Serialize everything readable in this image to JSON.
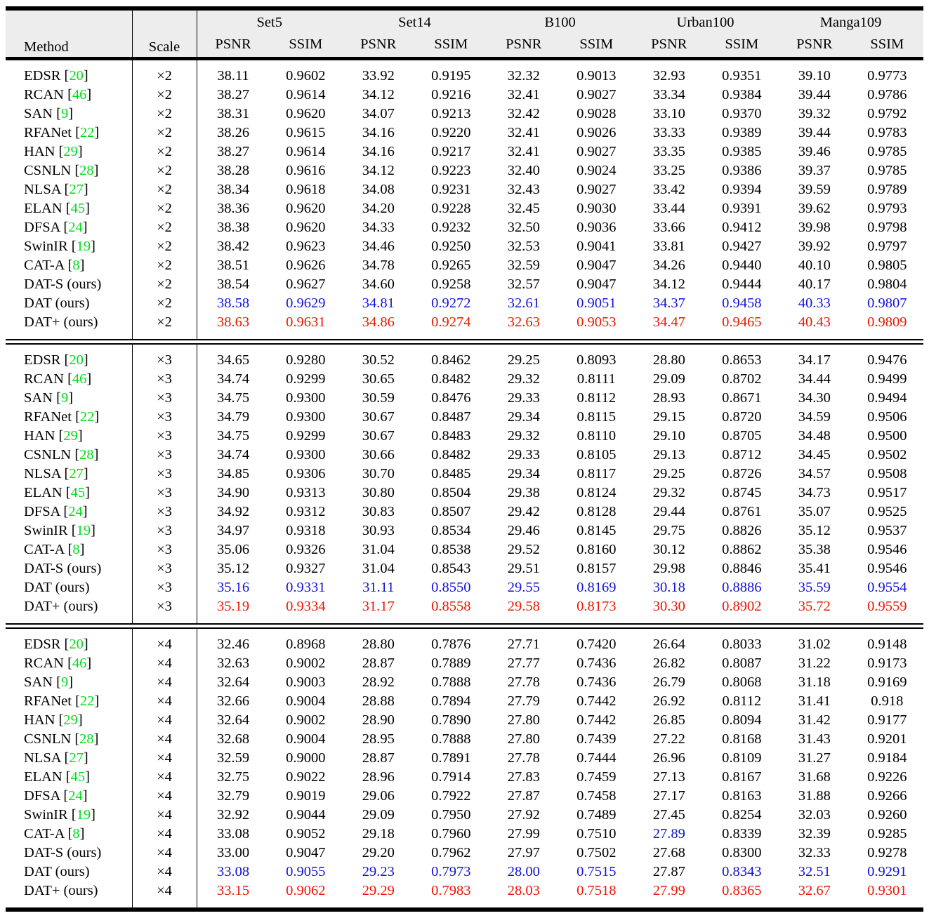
{
  "table": {
    "header": {
      "method": "Method",
      "scale": "Scale",
      "datasets": [
        "Set5",
        "Set14",
        "B100",
        "Urban100",
        "Manga109"
      ],
      "metrics": [
        "PSNR",
        "SSIM"
      ]
    },
    "colors": {
      "best": "#ee1400",
      "second": "#1111dd",
      "citation": "#00dd1c"
    },
    "blocks": [
      {
        "scale": "×2",
        "rows": [
          {
            "method": "EDSR",
            "cite": "20",
            "v": [
              "38.11",
              "0.9602",
              "33.92",
              "0.9195",
              "32.32",
              "0.9013",
              "32.93",
              "0.9351",
              "39.10",
              "0.9773"
            ]
          },
          {
            "method": "RCAN",
            "cite": "46",
            "v": [
              "38.27",
              "0.9614",
              "34.12",
              "0.9216",
              "32.41",
              "0.9027",
              "33.34",
              "0.9384",
              "39.44",
              "0.9786"
            ]
          },
          {
            "method": "SAN",
            "cite": "9",
            "v": [
              "38.31",
              "0.9620",
              "34.07",
              "0.9213",
              "32.42",
              "0.9028",
              "33.10",
              "0.9370",
              "39.32",
              "0.9792"
            ]
          },
          {
            "method": "RFANet",
            "cite": "22",
            "v": [
              "38.26",
              "0.9615",
              "34.16",
              "0.9220",
              "32.41",
              "0.9026",
              "33.33",
              "0.9389",
              "39.44",
              "0.9783"
            ]
          },
          {
            "method": "HAN",
            "cite": "29",
            "v": [
              "38.27",
              "0.9614",
              "34.16",
              "0.9217",
              "32.41",
              "0.9027",
              "33.35",
              "0.9385",
              "39.46",
              "0.9785"
            ]
          },
          {
            "method": "CSNLN",
            "cite": "28",
            "v": [
              "38.28",
              "0.9616",
              "34.12",
              "0.9223",
              "32.40",
              "0.9024",
              "33.25",
              "0.9386",
              "39.37",
              "0.9785"
            ]
          },
          {
            "method": "NLSA",
            "cite": "27",
            "v": [
              "38.34",
              "0.9618",
              "34.08",
              "0.9231",
              "32.43",
              "0.9027",
              "33.42",
              "0.9394",
              "39.59",
              "0.9789"
            ]
          },
          {
            "method": "ELAN",
            "cite": "45",
            "v": [
              "38.36",
              "0.9620",
              "34.20",
              "0.9228",
              "32.45",
              "0.9030",
              "33.44",
              "0.9391",
              "39.62",
              "0.9793"
            ]
          },
          {
            "method": "DFSA",
            "cite": "24",
            "v": [
              "38.38",
              "0.9620",
              "34.33",
              "0.9232",
              "32.50",
              "0.9036",
              "33.66",
              "0.9412",
              "39.98",
              "0.9798"
            ]
          },
          {
            "method": "SwinIR",
            "cite": "19",
            "v": [
              "38.42",
              "0.9623",
              "34.46",
              "0.9250",
              "32.53",
              "0.9041",
              "33.81",
              "0.9427",
              "39.92",
              "0.9797"
            ]
          },
          {
            "method": "CAT-A",
            "cite": "8",
            "v": [
              "38.51",
              "0.9626",
              "34.78",
              "0.9265",
              "32.59",
              "0.9047",
              "34.26",
              "0.9440",
              "40.10",
              "0.9805"
            ]
          },
          {
            "method": "DAT-S (ours)",
            "cite": null,
            "v": [
              "38.54",
              "0.9627",
              "34.60",
              "0.9258",
              "32.57",
              "0.9047",
              "34.12",
              "0.9444",
              "40.17",
              "0.9804"
            ]
          },
          {
            "method": "DAT (ours)",
            "cite": null,
            "v": [
              "38.58",
              "0.9629",
              "34.81",
              "0.9272",
              "32.61",
              "0.9051",
              "34.37",
              "0.9458",
              "40.33",
              "0.9807"
            ],
            "c": "bbbbbbbbbb"
          },
          {
            "method": "DAT+ (ours)",
            "cite": null,
            "v": [
              "38.63",
              "0.9631",
              "34.86",
              "0.9274",
              "32.63",
              "0.9053",
              "34.47",
              "0.9465",
              "40.43",
              "0.9809"
            ],
            "c": "rrrrrrrrrr"
          }
        ]
      },
      {
        "scale": "×3",
        "rows": [
          {
            "method": "EDSR",
            "cite": "20",
            "v": [
              "34.65",
              "0.9280",
              "30.52",
              "0.8462",
              "29.25",
              "0.8093",
              "28.80",
              "0.8653",
              "34.17",
              "0.9476"
            ]
          },
          {
            "method": "RCAN",
            "cite": "46",
            "v": [
              "34.74",
              "0.9299",
              "30.65",
              "0.8482",
              "29.32",
              "0.8111",
              "29.09",
              "0.8702",
              "34.44",
              "0.9499"
            ]
          },
          {
            "method": "SAN",
            "cite": "9",
            "v": [
              "34.75",
              "0.9300",
              "30.59",
              "0.8476",
              "29.33",
              "0.8112",
              "28.93",
              "0.8671",
              "34.30",
              "0.9494"
            ]
          },
          {
            "method": "RFANet",
            "cite": "22",
            "v": [
              "34.79",
              "0.9300",
              "30.67",
              "0.8487",
              "29.34",
              "0.8115",
              "29.15",
              "0.8720",
              "34.59",
              "0.9506"
            ]
          },
          {
            "method": "HAN",
            "cite": "29",
            "v": [
              "34.75",
              "0.9299",
              "30.67",
              "0.8483",
              "29.32",
              "0.8110",
              "29.10",
              "0.8705",
              "34.48",
              "0.9500"
            ]
          },
          {
            "method": "CSNLN",
            "cite": "28",
            "v": [
              "34.74",
              "0.9300",
              "30.66",
              "0.8482",
              "29.33",
              "0.8105",
              "29.13",
              "0.8712",
              "34.45",
              "0.9502"
            ]
          },
          {
            "method": "NLSA",
            "cite": "27",
            "v": [
              "34.85",
              "0.9306",
              "30.70",
              "0.8485",
              "29.34",
              "0.8117",
              "29.25",
              "0.8726",
              "34.57",
              "0.9508"
            ]
          },
          {
            "method": "ELAN",
            "cite": "45",
            "v": [
              "34.90",
              "0.9313",
              "30.80",
              "0.8504",
              "29.38",
              "0.8124",
              "29.32",
              "0.8745",
              "34.73",
              "0.9517"
            ]
          },
          {
            "method": "DFSA",
            "cite": "24",
            "v": [
              "34.92",
              "0.9312",
              "30.83",
              "0.8507",
              "29.42",
              "0.8128",
              "29.44",
              "0.8761",
              "35.07",
              "0.9525"
            ]
          },
          {
            "method": "SwinIR",
            "cite": "19",
            "v": [
              "34.97",
              "0.9318",
              "30.93",
              "0.8534",
              "29.46",
              "0.8145",
              "29.75",
              "0.8826",
              "35.12",
              "0.9537"
            ]
          },
          {
            "method": "CAT-A",
            "cite": "8",
            "v": [
              "35.06",
              "0.9326",
              "31.04",
              "0.8538",
              "29.52",
              "0.8160",
              "30.12",
              "0.8862",
              "35.38",
              "0.9546"
            ]
          },
          {
            "method": "DAT-S (ours)",
            "cite": null,
            "v": [
              "35.12",
              "0.9327",
              "31.04",
              "0.8543",
              "29.51",
              "0.8157",
              "29.98",
              "0.8846",
              "35.41",
              "0.9546"
            ]
          },
          {
            "method": "DAT (ours)",
            "cite": null,
            "v": [
              "35.16",
              "0.9331",
              "31.11",
              "0.8550",
              "29.55",
              "0.8169",
              "30.18",
              "0.8886",
              "35.59",
              "0.9554"
            ],
            "c": "bbbbbbbbbb"
          },
          {
            "method": "DAT+ (ours)",
            "cite": null,
            "v": [
              "35.19",
              "0.9334",
              "31.17",
              "0.8558",
              "29.58",
              "0.8173",
              "30.30",
              "0.8902",
              "35.72",
              "0.9559"
            ],
            "c": "rrrrrrrrrr"
          }
        ]
      },
      {
        "scale": "×4",
        "rows": [
          {
            "method": "EDSR",
            "cite": "20",
            "v": [
              "32.46",
              "0.8968",
              "28.80",
              "0.7876",
              "27.71",
              "0.7420",
              "26.64",
              "0.8033",
              "31.02",
              "0.9148"
            ]
          },
          {
            "method": "RCAN",
            "cite": "46",
            "v": [
              "32.63",
              "0.9002",
              "28.87",
              "0.7889",
              "27.77",
              "0.7436",
              "26.82",
              "0.8087",
              "31.22",
              "0.9173"
            ]
          },
          {
            "method": "SAN",
            "cite": "9",
            "v": [
              "32.64",
              "0.9003",
              "28.92",
              "0.7888",
              "27.78",
              "0.7436",
              "26.79",
              "0.8068",
              "31.18",
              "0.9169"
            ]
          },
          {
            "method": "RFANet",
            "cite": "22",
            "v": [
              "32.66",
              "0.9004",
              "28.88",
              "0.7894",
              "27.79",
              "0.7442",
              "26.92",
              "0.8112",
              "31.41",
              "0.918"
            ]
          },
          {
            "method": "HAN",
            "cite": "29",
            "v": [
              "32.64",
              "0.9002",
              "28.90",
              "0.7890",
              "27.80",
              "0.7442",
              "26.85",
              "0.8094",
              "31.42",
              "0.9177"
            ]
          },
          {
            "method": "CSNLN",
            "cite": "28",
            "v": [
              "32.68",
              "0.9004",
              "28.95",
              "0.7888",
              "27.80",
              "0.7439",
              "27.22",
              "0.8168",
              "31.43",
              "0.9201"
            ]
          },
          {
            "method": "NLSA",
            "cite": "27",
            "v": [
              "32.59",
              "0.9000",
              "28.87",
              "0.7891",
              "27.78",
              "0.7444",
              "26.96",
              "0.8109",
              "31.27",
              "0.9184"
            ]
          },
          {
            "method": "ELAN",
            "cite": "45",
            "v": [
              "32.75",
              "0.9022",
              "28.96",
              "0.7914",
              "27.83",
              "0.7459",
              "27.13",
              "0.8167",
              "31.68",
              "0.9226"
            ]
          },
          {
            "method": "DFSA",
            "cite": "24",
            "v": [
              "32.79",
              "0.9019",
              "29.06",
              "0.7922",
              "27.87",
              "0.7458",
              "27.17",
              "0.8163",
              "31.88",
              "0.9266"
            ]
          },
          {
            "method": "SwinIR",
            "cite": "19",
            "v": [
              "32.92",
              "0.9044",
              "29.09",
              "0.7950",
              "27.92",
              "0.7489",
              "27.45",
              "0.8254",
              "32.03",
              "0.9260"
            ]
          },
          {
            "method": "CAT-A",
            "cite": "8",
            "v": [
              "33.08",
              "0.9052",
              "29.18",
              "0.7960",
              "27.99",
              "0.7510",
              "27.89",
              "0.8339",
              "32.39",
              "0.9285"
            ],
            "c": "kkkkkkbkkk"
          },
          {
            "method": "DAT-S (ours)",
            "cite": null,
            "v": [
              "33.00",
              "0.9047",
              "29.20",
              "0.7962",
              "27.97",
              "0.7502",
              "27.68",
              "0.8300",
              "32.33",
              "0.9278"
            ]
          },
          {
            "method": "DAT (ours)",
            "cite": null,
            "v": [
              "33.08",
              "0.9055",
              "29.23",
              "0.7973",
              "28.00",
              "0.7515",
              "27.87",
              "0.8343",
              "32.51",
              "0.9291"
            ],
            "c": "bbbbbbkbbb"
          },
          {
            "method": "DAT+ (ours)",
            "cite": null,
            "v": [
              "33.15",
              "0.9062",
              "29.29",
              "0.7983",
              "28.03",
              "0.7518",
              "27.99",
              "0.8365",
              "32.67",
              "0.9301"
            ],
            "c": "rrrrrrrrrr"
          }
        ]
      }
    ]
  }
}
